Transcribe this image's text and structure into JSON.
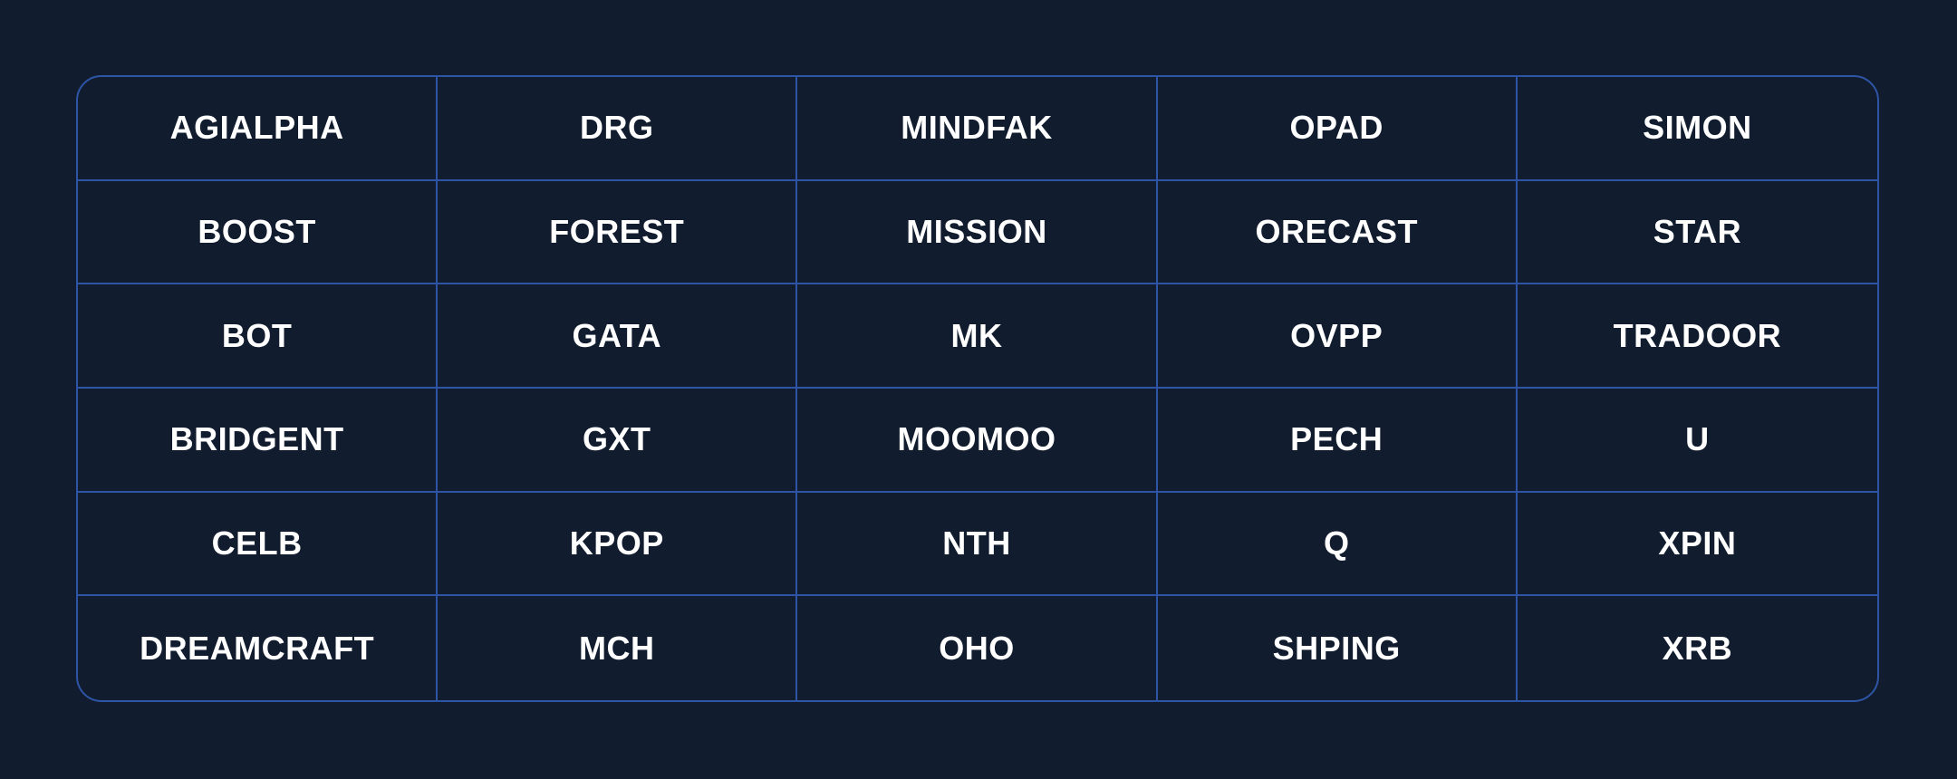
{
  "colors": {
    "background": "#111C2F",
    "grid_line": "#2E55A5",
    "text": "#FFFFFF"
  },
  "grid": {
    "columns": 5,
    "row_count": 6,
    "rows": [
      [
        "AGIALPHA",
        "DRG",
        "MINDFAK",
        "OPAD",
        "SIMON"
      ],
      [
        "BOOST",
        "FOREST",
        "MISSION",
        "ORECAST",
        "STAR"
      ],
      [
        "BOT",
        "GATA",
        "MK",
        "OVPP",
        "TRADOOR"
      ],
      [
        "BRIDGENT",
        "GXT",
        "MOOMOO",
        "PECH",
        "U"
      ],
      [
        "CELB",
        "KPOP",
        "NTH",
        "Q",
        "XPIN"
      ],
      [
        "DREAMCRAFT",
        "MCH",
        "OHO",
        "SHPING",
        "XRB"
      ]
    ]
  }
}
